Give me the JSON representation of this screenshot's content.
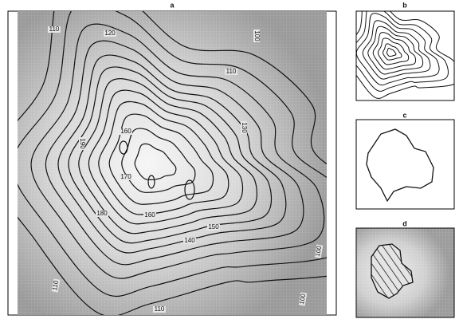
{
  "panels": [
    {
      "label": "a",
      "contour_labels": [
        "110",
        "120",
        "100",
        "110",
        "130",
        "160",
        "190",
        "170",
        "180",
        "160",
        "150",
        "140",
        "100",
        "110",
        "110",
        "100"
      ]
    },
    {
      "label": "b"
    },
    {
      "label": "c"
    },
    {
      "label": "d"
    }
  ]
}
